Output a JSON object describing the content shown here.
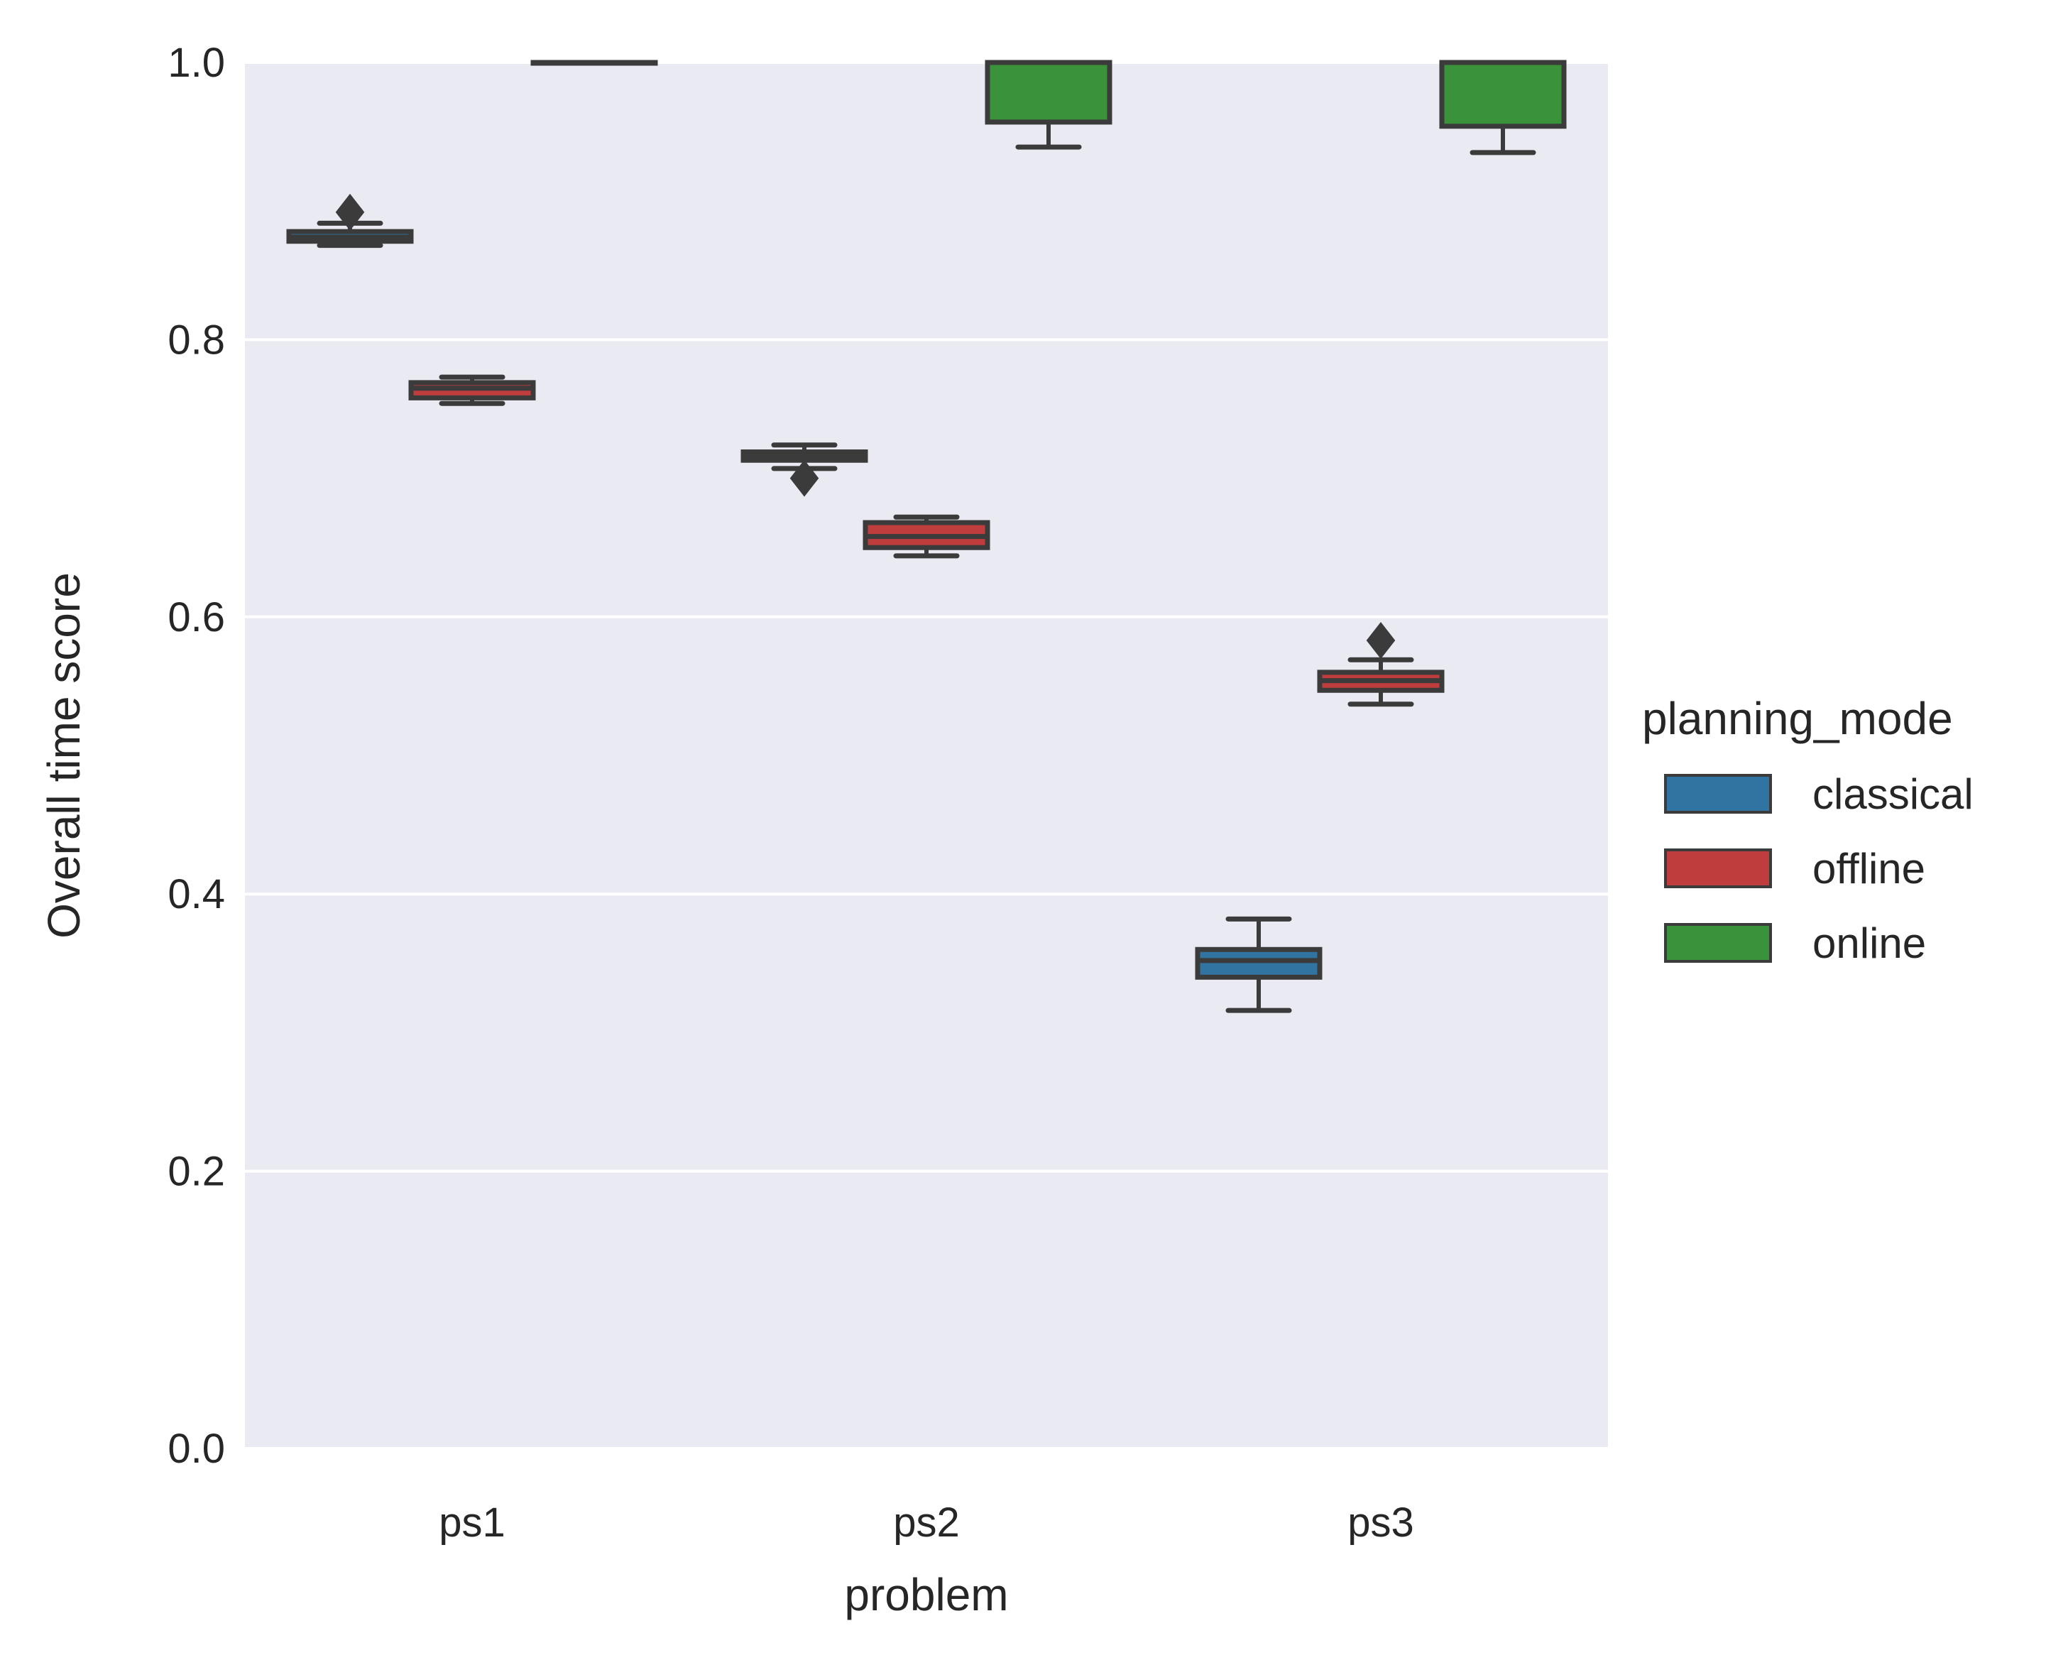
{
  "colors": {
    "panel": "#eaeaf2",
    "grid": "#ffffff",
    "edge": "#3b3b3b",
    "classical": "#3274a1",
    "offline": "#c03d3e",
    "online": "#3a923a"
  },
  "chart_data": {
    "type": "box",
    "title": "",
    "xlabel": "problem",
    "ylabel": "Overall time score",
    "ylim": [
      0,
      1.0
    ],
    "yticks": [
      "0.0",
      "0.2",
      "0.4",
      "0.6",
      "0.8",
      "1.0"
    ],
    "ytick_values": [
      0,
      0.2,
      0.4,
      0.6,
      0.8,
      1.0
    ],
    "grid": true,
    "legend_position": "right",
    "categories": [
      "ps1",
      "ps2",
      "ps3"
    ],
    "legend": {
      "title": "planning_mode",
      "entries": [
        "classical",
        "offline",
        "online"
      ]
    },
    "series": [
      {
        "name": "classical",
        "color": "#3274a1",
        "boxes": [
          {
            "whisker_low": 0.868,
            "q1": 0.871,
            "median": 0.874,
            "q3": 0.878,
            "whisker_high": 0.884,
            "outliers": [
              0.892
            ]
          },
          {
            "whisker_low": 0.707,
            "q1": 0.713,
            "median": 0.716,
            "q3": 0.719,
            "whisker_high": 0.724,
            "outliers": [
              0.7
            ]
          },
          {
            "whisker_low": 0.316,
            "q1": 0.34,
            "median": 0.352,
            "q3": 0.36,
            "whisker_high": 0.382,
            "outliers": []
          }
        ]
      },
      {
        "name": "offline",
        "color": "#c03d3e",
        "boxes": [
          {
            "whisker_low": 0.754,
            "q1": 0.758,
            "median": 0.765,
            "q3": 0.769,
            "whisker_high": 0.773,
            "outliers": []
          },
          {
            "whisker_low": 0.644,
            "q1": 0.65,
            "median": 0.658,
            "q3": 0.668,
            "whisker_high": 0.672,
            "outliers": []
          },
          {
            "whisker_low": 0.537,
            "q1": 0.547,
            "median": 0.554,
            "q3": 0.56,
            "whisker_high": 0.569,
            "outliers": [
              0.583
            ]
          }
        ]
      },
      {
        "name": "online",
        "color": "#3a923a",
        "boxes": [
          {
            "whisker_low": 1.0,
            "q1": 1.0,
            "median": 1.0,
            "q3": 1.0,
            "whisker_high": 1.0,
            "outliers": []
          },
          {
            "whisker_low": 0.939,
            "q1": 0.957,
            "median": 1.0,
            "q3": 1.0,
            "whisker_high": 1.0,
            "outliers": []
          },
          {
            "whisker_low": 0.935,
            "q1": 0.954,
            "median": 1.0,
            "q3": 1.0,
            "whisker_high": 1.0,
            "outliers": []
          }
        ]
      }
    ]
  }
}
